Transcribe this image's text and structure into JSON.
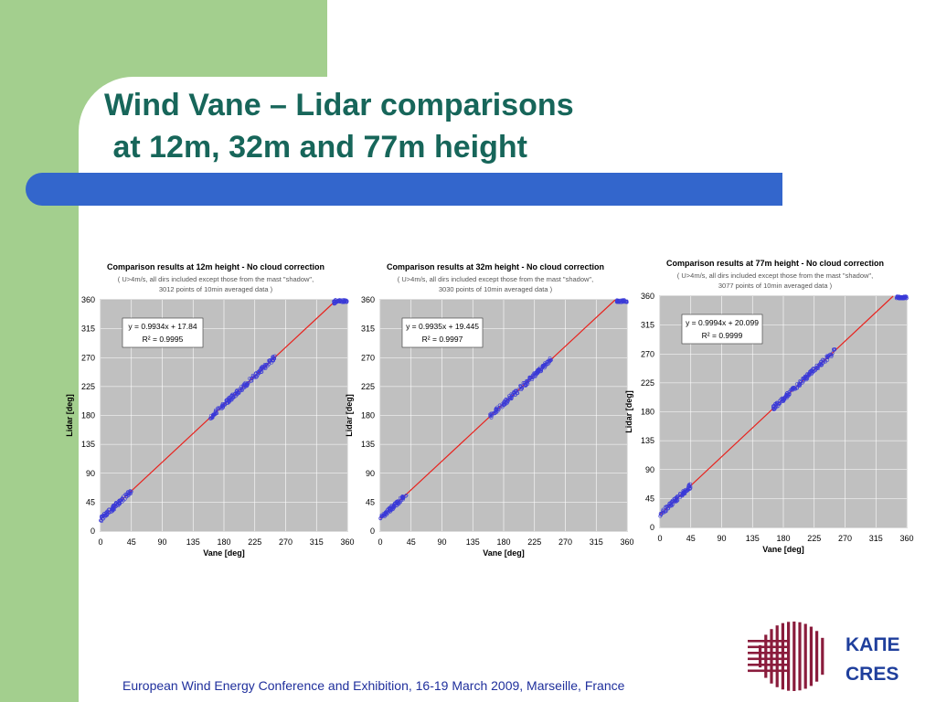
{
  "slide": {
    "title_line1": "Wind Vane – Lidar comparisons",
    "title_line2": " at 12m, 32m and 77m height",
    "footer": "European Wind Energy Conference and Exhibition, 16-19 March 2009, Marseille, France",
    "logo_line1": "ΚΑΠΕ",
    "logo_line2": "CRES"
  },
  "colors": {
    "green": "#a3cf8e",
    "blue": "#3366cc",
    "title": "#17665a",
    "fit": "#e8231e",
    "points": "#3a3ad8",
    "plot_bg": "#c0c0c0"
  },
  "chart_data": [
    {
      "type": "scatter",
      "title": "Comparison results at 12m height - No cloud correction",
      "subtitle_line1": "( U>4m/s, all dirs included except those from the mast \"shadow\",",
      "subtitle_line2": "3012 points of 10min averaged data )",
      "xlabel": "Vane  [deg]",
      "ylabel": "Lidar  [deg]",
      "xlim": [
        0,
        360
      ],
      "ylim": [
        0,
        360
      ],
      "ticks": [
        0,
        45,
        90,
        135,
        180,
        225,
        270,
        315,
        360
      ],
      "equation": "y = 0.9934x + 17.84",
      "r2": "R² = 0.9995",
      "fit": {
        "slope": 0.9934,
        "intercept": 17.84
      },
      "clusters": [
        [
          0,
          45
        ],
        [
          160,
          255
        ],
        [
          340,
          360
        ]
      ]
    },
    {
      "type": "scatter",
      "title": "Comparison results at 32m height - No cloud correction",
      "subtitle_line1": "( U>4m/s, all dirs included except those from the mast \"shadow\",",
      "subtitle_line2": "3030 points of 10min averaged data )",
      "xlabel": "Vane  [deg]",
      "ylabel": "Lidar  [deg]",
      "xlim": [
        0,
        360
      ],
      "ylim": [
        0,
        360
      ],
      "ticks": [
        0,
        45,
        90,
        135,
        180,
        225,
        270,
        315,
        360
      ],
      "equation": "y = 0.9935x + 19.445",
      "r2": "R² = 0.9997",
      "fit": {
        "slope": 0.9935,
        "intercept": 19.445
      },
      "clusters": [
        [
          0,
          40
        ],
        [
          160,
          250
        ],
        [
          345,
          360
        ]
      ]
    },
    {
      "type": "scatter",
      "title": "Comparison results at 77m height - No cloud correction",
      "subtitle_line1": "( U>4m/s, all dirs included except those from the mast \"shadow\",",
      "subtitle_line2": "3077 points of 10min averaged data )",
      "xlabel": "Vane  [deg]",
      "ylabel": "Lidar  [deg]",
      "xlim": [
        0,
        360
      ],
      "ylim": [
        0,
        360
      ],
      "ticks": [
        0,
        45,
        90,
        135,
        180,
        225,
        270,
        315,
        360
      ],
      "equation": "y = 0.9994x + 20.099",
      "r2": "R² = 0.9999",
      "fit": {
        "slope": 0.9994,
        "intercept": 20.099
      },
      "clusters": [
        [
          0,
          45
        ],
        [
          165,
          255
        ],
        [
          345,
          360
        ]
      ]
    }
  ]
}
